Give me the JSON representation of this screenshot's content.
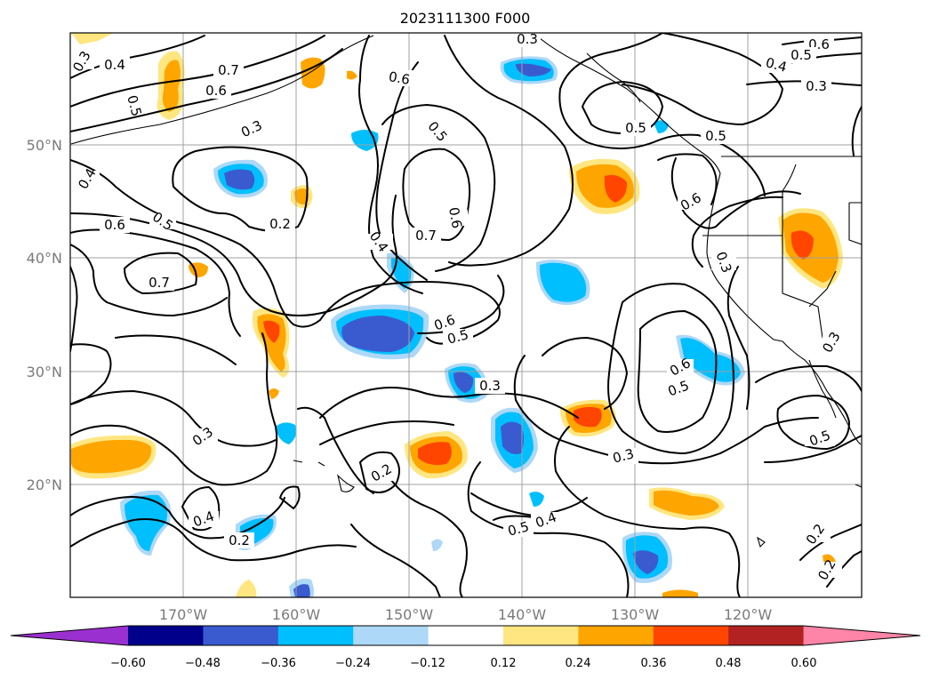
{
  "title": "2023111300 F000",
  "map": {
    "lat_labels": [
      "50°N",
      "40°N",
      "30°N",
      "20°N"
    ],
    "lon_labels": [
      "170°W",
      "160°W",
      "150°W",
      "140°W",
      "130°W",
      "120°W"
    ],
    "contour_labels": [
      "0.3",
      "0.4",
      "0.7",
      "0.6",
      "0.6",
      "0.5",
      "0.3",
      "0.4",
      "0.6",
      "0.5",
      "0.2",
      "0.7",
      "0.6",
      "0.4",
      "0.5",
      "0.3",
      "0.5",
      "0.6",
      "0.5",
      "0.4",
      "0.3",
      "0.6",
      "0.6",
      "0.5",
      "0.7",
      "0.3",
      "0.5",
      "0.3",
      "0.5",
      "0.6",
      "0.5",
      "0.3",
      "0.3",
      "0.2",
      "0.4",
      "0.2",
      "0.5",
      "0.4",
      "0.2",
      "0.3",
      "0.2"
    ]
  },
  "colorbar": {
    "tick_labels": [
      "−0.60",
      "−0.48",
      "−0.36",
      "−0.24",
      "−0.12",
      "0.12",
      "0.24",
      "0.36",
      "0.48",
      "0.60"
    ],
    "levels": [
      -0.6,
      -0.48,
      -0.36,
      -0.24,
      -0.12,
      0.12,
      0.24,
      0.36,
      0.48,
      0.6
    ],
    "colors": [
      "#9b30d0",
      "#00008b",
      "#3a5bd0",
      "#00bfff",
      "#add8f7",
      "#ffffff",
      "#ffe680",
      "#ffa500",
      "#ff4500",
      "#b22222",
      "#ff85a8"
    ]
  }
}
